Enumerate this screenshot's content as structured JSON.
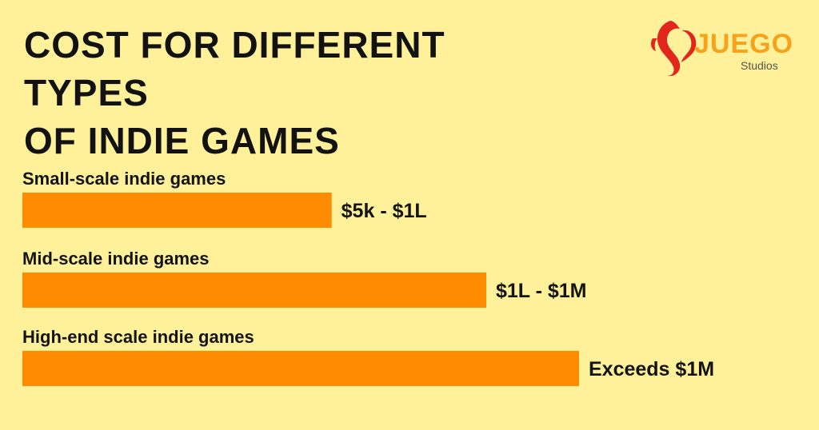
{
  "title_lines": [
    "COST FOR DIFFERENT TYPES",
    "OF INDIE GAMES"
  ],
  "logo": {
    "word": "JUEGO",
    "sub": "Studios"
  },
  "colors": {
    "background": "#fff09a",
    "bar": "#ff8c00",
    "logo_red": "#e3261b",
    "logo_orange": "#f7a21b"
  },
  "chart_data": {
    "type": "bar",
    "orientation": "horizontal",
    "categories": [
      "Small-scale indie games",
      "Mid-scale indie games",
      "High-end scale indie games"
    ],
    "value_labels": [
      "$5k - $1L",
      "$1L - $1M",
      "Exceeds $1M"
    ],
    "values": [
      1,
      1.5,
      1.8
    ],
    "xlim": [
      0,
      1.8
    ],
    "grid": false,
    "legend": "none"
  }
}
